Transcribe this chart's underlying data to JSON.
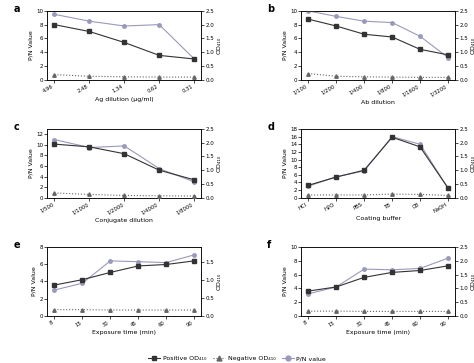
{
  "panel_a": {
    "xlabel": "Ag dilution (μg/ml)",
    "ylabel_left": "P/N Value",
    "ylabel_right": "OD₄₁₀",
    "x_labels": [
      "4.96",
      "2.48",
      "1.34",
      "0.62",
      "0.31"
    ],
    "positive_od": [
      2.0,
      1.75,
      1.35,
      0.88,
      0.75
    ],
    "negative_od": [
      0.18,
      0.12,
      0.1,
      0.09,
      0.09
    ],
    "pn_value": [
      9.5,
      8.5,
      7.8,
      8.0,
      3.0
    ],
    "ylim_left": [
      0,
      10
    ],
    "ylim_right": [
      0.0,
      2.5
    ],
    "yticks_left": [
      0,
      2,
      4,
      6,
      8,
      10
    ],
    "yticks_right": [
      0.0,
      0.5,
      1.0,
      1.5,
      2.0,
      2.5
    ]
  },
  "panel_b": {
    "xlabel": "Ab dilution",
    "ylabel_left": "P/N Value",
    "ylabel_right": "OD₄₁₀",
    "x_labels": [
      "1/100",
      "1/200",
      "1/400",
      "1/800",
      "1/1600",
      "1/3200"
    ],
    "positive_od": [
      2.2,
      1.95,
      1.65,
      1.55,
      1.1,
      0.9
    ],
    "negative_od": [
      0.22,
      0.12,
      0.1,
      0.09,
      0.08,
      0.08
    ],
    "pn_value": [
      10.0,
      9.2,
      8.5,
      8.3,
      6.3,
      3.2
    ],
    "ylim_left": [
      0,
      10
    ],
    "ylim_right": [
      0.0,
      2.5
    ],
    "yticks_left": [
      0,
      2,
      4,
      6,
      8,
      10
    ],
    "yticks_right": [
      0.0,
      0.5,
      1.0,
      1.5,
      2.0,
      2.5
    ]
  },
  "panel_c": {
    "xlabel": "Conjugate dilution",
    "ylabel_left": "P/N Value",
    "ylabel_right": "OD₄₁₀",
    "x_labels": [
      "1/500",
      "1/1000",
      "1/2000",
      "1/4000",
      "1/8000"
    ],
    "positive_od": [
      1.95,
      1.85,
      1.6,
      1.0,
      0.65
    ],
    "negative_od": [
      0.17,
      0.12,
      0.08,
      0.07,
      0.06
    ],
    "pn_value": [
      11.0,
      9.5,
      9.8,
      5.5,
      3.0
    ],
    "ylim_left": [
      0,
      13
    ],
    "ylim_right": [
      0.0,
      2.5
    ],
    "yticks_left": [
      0,
      2,
      4,
      6,
      8,
      10,
      12
    ],
    "yticks_right": [
      0.0,
      0.5,
      1.0,
      1.5,
      2.0,
      2.5
    ]
  },
  "panel_d": {
    "xlabel": "Coating buffer",
    "ylabel_left": "P/N Value",
    "ylabel_right": "OD₄₁₀",
    "x_labels": [
      "HCl",
      "H2O",
      "PBS",
      "TB",
      "CB",
      "NaOH"
    ],
    "positive_od": [
      0.45,
      0.75,
      1.0,
      2.2,
      1.85,
      0.35
    ],
    "negative_od": [
      0.1,
      0.1,
      0.1,
      0.13,
      0.12,
      0.08
    ],
    "pn_value": [
      3.0,
      5.5,
      7.0,
      16.0,
      14.0,
      2.5
    ],
    "ylim_left": [
      0,
      18
    ],
    "ylim_right": [
      0.0,
      2.5
    ],
    "yticks_left": [
      0,
      2,
      4,
      6,
      8,
      10,
      12,
      14,
      16,
      18
    ],
    "yticks_right": [
      0.0,
      0.5,
      1.0,
      1.5,
      2.0,
      2.5
    ]
  },
  "panel_e": {
    "xlabel": "Exposure time (min)",
    "ylabel_left": "P/N Value",
    "ylabel_right": "OD₄₁₀",
    "x_labels": [
      "8",
      "15",
      "30",
      "45",
      "60",
      "90"
    ],
    "positive_od": [
      0.85,
      1.0,
      1.2,
      1.38,
      1.42,
      1.52
    ],
    "negative_od": [
      0.17,
      0.17,
      0.16,
      0.16,
      0.16,
      0.16
    ],
    "pn_value": [
      3.0,
      3.8,
      6.4,
      6.3,
      6.2,
      7.1
    ],
    "ylim_left": [
      0,
      8
    ],
    "ylim_right": [
      0.0,
      1.9
    ],
    "yticks_left": [
      0,
      2,
      4,
      6,
      8
    ],
    "yticks_right": [
      0.0,
      0.5,
      1.0,
      1.5
    ]
  },
  "panel_f": {
    "xlabel": "Exposure time (min)",
    "ylabel_left": "P/N Value",
    "ylabel_right": "OD₄₁₀",
    "x_labels": [
      "8",
      "15",
      "30",
      "45",
      "60",
      "90"
    ],
    "positive_od": [
      0.9,
      1.05,
      1.4,
      1.58,
      1.65,
      1.82
    ],
    "negative_od": [
      0.17,
      0.17,
      0.16,
      0.16,
      0.16,
      0.16
    ],
    "pn_value": [
      3.2,
      4.2,
      6.8,
      6.7,
      6.9,
      8.4
    ],
    "ylim_left": [
      0,
      10
    ],
    "ylim_right": [
      0.0,
      2.5
    ],
    "yticks_left": [
      0,
      2,
      4,
      6,
      8,
      10
    ],
    "yticks_right": [
      0.0,
      0.5,
      1.0,
      1.5,
      2.0,
      2.5
    ]
  },
  "legend": {
    "positive_label": "Positive OD₄₁₀",
    "negative_label": "Negative OD₄₁₀",
    "pn_label": "P/N value"
  },
  "colors": {
    "positive": "#333333",
    "negative": "#666666",
    "pn": "#9999bb"
  }
}
